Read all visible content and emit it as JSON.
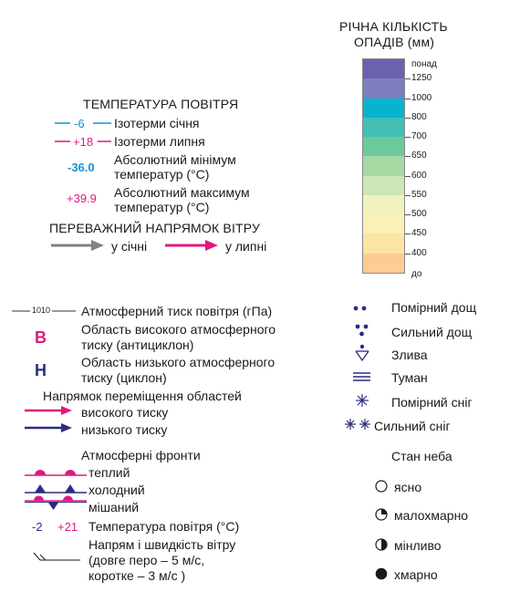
{
  "precip": {
    "title_line1": "РІЧНА КІЛЬКІСТЬ",
    "title_line2": "ОПАДІВ (мм)",
    "top_label": "понад",
    "bottom_label": "до",
    "ticks": [
      "1250",
      "1000",
      "800",
      "700",
      "650",
      "600",
      "550",
      "500",
      "450",
      "400"
    ],
    "colors": [
      "#6a62ae",
      "#7e7dc0",
      "#06b4d0",
      "#44bfb3",
      "#6dc89a",
      "#a6d8a3",
      "#cde6b5",
      "#f0f2bd",
      "#fbf0b5",
      "#fde4a4",
      "#fdcc94"
    ]
  },
  "temperature": {
    "title": "ТЕМПЕРАТУРА ПОВІТРЯ",
    "jan_value": "-6",
    "jan_label": "Ізотерми січня",
    "jul_value": "+18",
    "jul_label": "Ізотерми липня",
    "min_value": "-36.0",
    "min_line1": "Абсолютний мінімум",
    "min_line2": "температур (°С)",
    "max_value": "+39.9",
    "max_line1": "Абсолютний максимум",
    "max_line2": "температур (°С)",
    "colors": {
      "january": "#1f8fd0",
      "july": "#e0197d"
    }
  },
  "wind": {
    "title": "ПЕРЕВАЖНИЙ НАПРЯМОК ВІТРУ",
    "january": "у січні",
    "july": "у липні",
    "colors": {
      "january": "#808080",
      "july": "#e0197d"
    }
  },
  "pressure": {
    "isobar_value": "1010",
    "isobar_label": "Атмосферний тиск повітря (гПа)",
    "high_symbol": "В",
    "high_line1": "Область високого атмосферного",
    "high_line2": "тиску (антициклон)",
    "low_symbol": "Н",
    "low_line1": "Область низького атмосферного",
    "low_line2": "тиску (циклон)",
    "movement_title": "Напрямок переміщення областей",
    "movement_high": "високого тиску",
    "movement_low": "низького тиску"
  },
  "fronts": {
    "title": "Атмосферні фронти",
    "warm": "теплий",
    "cold": "холодний",
    "mixed": "мішаний",
    "temp_cold": "-2",
    "temp_warm": "+21",
    "temp_label": "Температура повітря (°С)",
    "wind_line1": "Напрям і швидкість вітру",
    "wind_line2": "(довге перо – 5 м/с,",
    "wind_line3": "коротке – 3 м/с )"
  },
  "precip_symbols": [
    {
      "icon": "two-dots-icon",
      "label": "Помірний дощ"
    },
    {
      "icon": "three-dots-icon",
      "label": "Сильний дощ"
    },
    {
      "icon": "shower-icon",
      "label": "Злива"
    },
    {
      "icon": "fog-icon",
      "label": "Туман"
    },
    {
      "icon": "snowflake-icon",
      "label": "Помірний сніг"
    },
    {
      "icon": "double-snowflake-icon",
      "label": "Сильний сніг"
    }
  ],
  "sky": {
    "title": "Стан неба",
    "items": [
      {
        "icon": "clear-sky-icon",
        "label": "ясно"
      },
      {
        "icon": "partly-cloudy-icon",
        "label": "малохмарно"
      },
      {
        "icon": "variable-cloud-icon",
        "label": "мінливо"
      },
      {
        "icon": "overcast-icon",
        "label": "хмарно"
      }
    ]
  }
}
